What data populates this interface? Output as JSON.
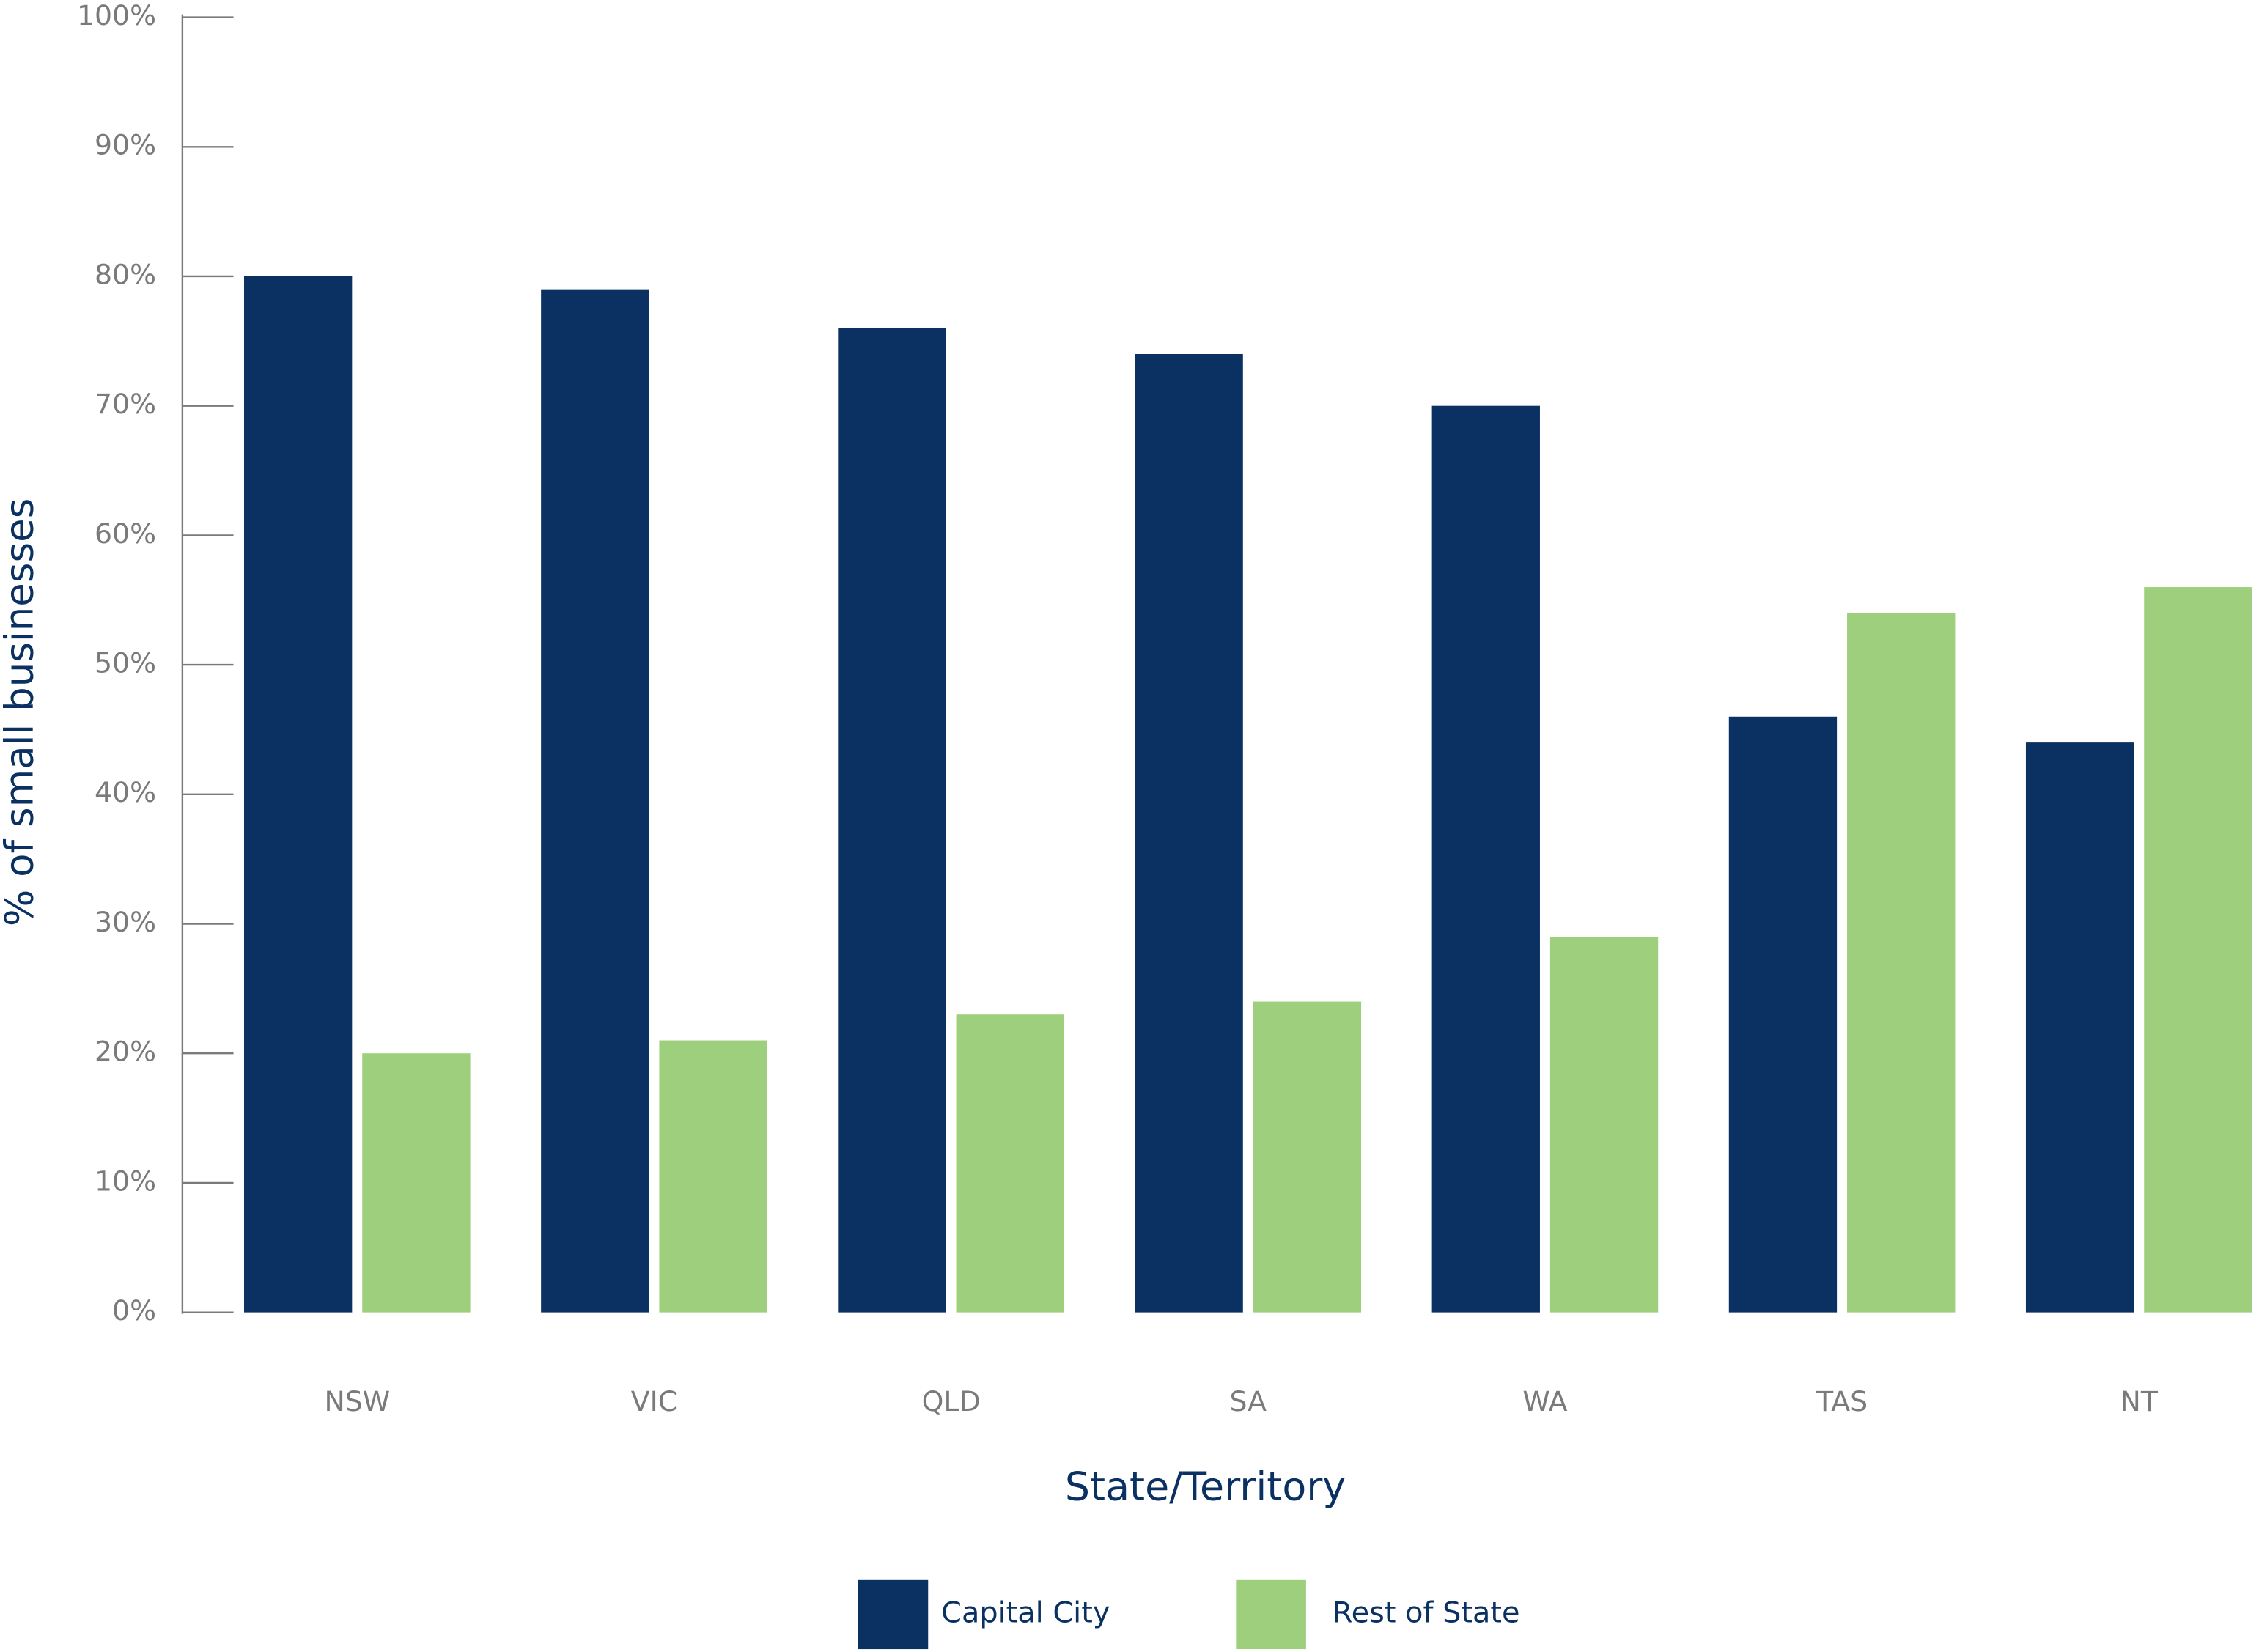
{
  "chart_data": {
    "type": "bar",
    "x_label": "State/Territory",
    "y_label": "% of small businesses",
    "categories": [
      "NSW",
      "VIC",
      "QLD",
      "SA",
      "WA",
      "TAS",
      "NT"
    ],
    "series": [
      {
        "name": "Capital City",
        "color": "#0a3161",
        "values": [
          80,
          79,
          76,
          74,
          70,
          46,
          44
        ]
      },
      {
        "name": "Rest of State",
        "color": "#9dcf7c",
        "values": [
          20,
          21,
          23,
          24,
          29,
          54,
          56
        ]
      }
    ],
    "ylim": [
      0,
      100
    ],
    "yticks": [
      {
        "value": 0,
        "label": "0%"
      },
      {
        "value": 10,
        "label": "10%"
      },
      {
        "value": 20,
        "label": "20%"
      },
      {
        "value": 30,
        "label": "30%"
      },
      {
        "value": 40,
        "label": "40%"
      },
      {
        "value": 50,
        "label": "50%"
      },
      {
        "value": 60,
        "label": "60%"
      },
      {
        "value": 70,
        "label": "70%"
      },
      {
        "value": 80,
        "label": "80%"
      },
      {
        "value": 90,
        "label": "90%"
      },
      {
        "value": 100,
        "label": "100%"
      }
    ],
    "legend": "bottom"
  }
}
